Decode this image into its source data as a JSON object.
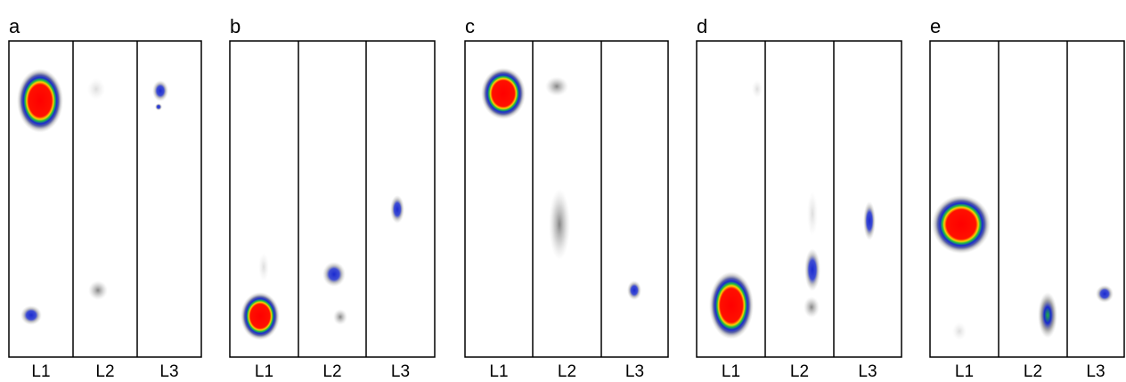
{
  "panels": [
    {
      "label": "a",
      "lanes": [
        "L1",
        "L2",
        "L3"
      ]
    },
    {
      "label": "b",
      "lanes": [
        "L1",
        "L2",
        "L3"
      ]
    },
    {
      "label": "c",
      "lanes": [
        "L1",
        "L2",
        "L3"
      ]
    },
    {
      "label": "d",
      "lanes": [
        "L1",
        "L2",
        "L3"
      ]
    },
    {
      "label": "e",
      "lanes": [
        "L1",
        "L2",
        "L3"
      ]
    }
  ]
}
